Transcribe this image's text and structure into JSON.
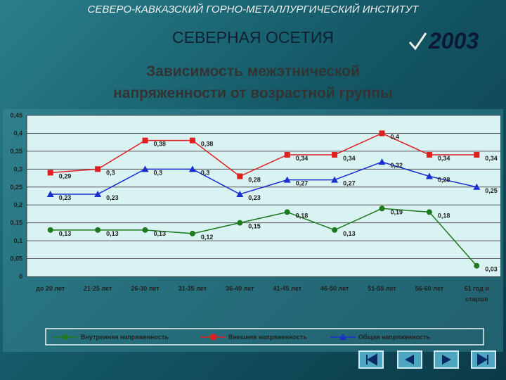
{
  "header": {
    "institute": "СЕВЕРО-КАВКАЗСКИЙ ГОРНО-МЕТАЛЛУРГИЧЕСКИЙ ИНСТИТУТ",
    "region": "СЕВЕРНАЯ ОСЕТИЯ",
    "year": "2003"
  },
  "chart_data": {
    "type": "line",
    "title": "Зависимость межэтнической напряженности от возрастной группы",
    "categories": [
      "до 20 лет",
      "21-25 лет",
      "26-30 лет",
      "31-35 лет",
      "36-40 лет",
      "41-45 лет",
      "46-50 лет",
      "51-55 лет",
      "56-60 лет",
      "61 год и старше"
    ],
    "series": [
      {
        "name": "Внутренняя напряженность",
        "color": "#1e7a1e",
        "marker": "circle",
        "values": [
          0.13,
          0.13,
          0.13,
          0.12,
          0.15,
          0.18,
          0.13,
          0.19,
          0.18,
          0.03
        ],
        "value_labels": [
          "0,13",
          "0,13",
          "0,13",
          "0,12",
          "0,15",
          "0,18",
          "0,13",
          "0,19",
          "0,18",
          "0,03"
        ]
      },
      {
        "name": "Внешняя напряженность",
        "color": "#e02020",
        "marker": "square",
        "values": [
          0.29,
          0.3,
          0.38,
          0.38,
          0.28,
          0.34,
          0.34,
          0.4,
          0.34,
          0.34
        ],
        "value_labels": [
          "0,29",
          "0,3",
          "0,38",
          "0,38",
          "0,28",
          "0,34",
          "0,34",
          "0,4",
          "0,34",
          "0,34"
        ]
      },
      {
        "name": "Общая напряженность",
        "color": "#1a2fd0",
        "marker": "triangle",
        "values": [
          0.23,
          0.23,
          0.3,
          0.3,
          0.23,
          0.27,
          0.27,
          0.32,
          0.28,
          0.25
        ],
        "value_labels": [
          "0,23",
          "0,23",
          "0,3",
          "0,3",
          "0,23",
          "0,27",
          "0,27",
          "0,32",
          "0,28",
          "0,25"
        ]
      }
    ],
    "ylim": [
      0,
      0.45
    ],
    "yticks": [
      0,
      {
        "value": 0.05,
        "label": "0,05"
      },
      {
        "value": 0.1,
        "label": "0,1"
      },
      {
        "value": 0.15,
        "label": "0,15"
      },
      {
        "value": 0.2,
        "label": "0,2"
      },
      {
        "value": 0.25,
        "label": "0,25"
      },
      {
        "value": 0.3,
        "label": "0,3"
      },
      {
        "value": 0.35,
        "label": "0,35"
      },
      {
        "value": 0.4,
        "label": "0,4"
      },
      {
        "value": 0.45,
        "label": "0,45"
      }
    ],
    "grid": true,
    "legend": "bottom"
  }
}
